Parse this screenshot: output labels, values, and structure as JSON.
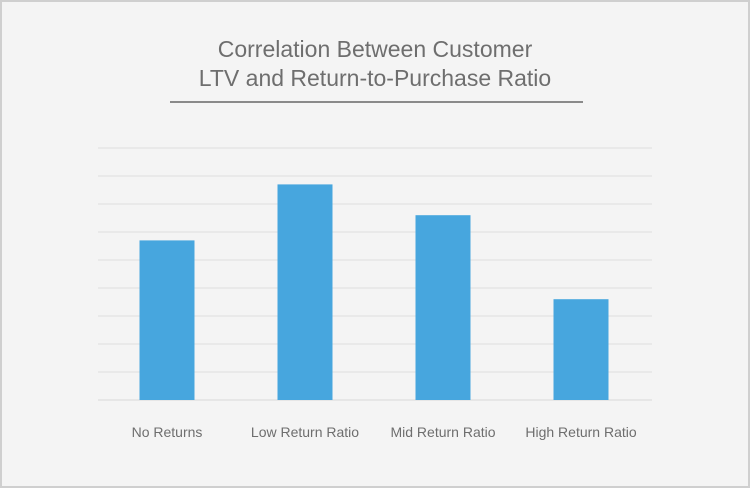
{
  "title_line1": "Correlation Between Customer",
  "title_line2": "LTV and Return-to-Purchase Ratio",
  "chart_data": {
    "type": "bar",
    "title": "Correlation Between Customer LTV and Return-to-Purchase Ratio",
    "categories": [
      "No Returns",
      "Low Return Ratio",
      "Mid Return Ratio",
      "High Return Ratio"
    ],
    "values": [
      5.7,
      7.7,
      6.6,
      3.6
    ],
    "ylim": [
      0,
      9
    ],
    "grid": true,
    "y_tick_labels_shown": false,
    "bar_color": "#47a6de",
    "grid_color": "#dedede",
    "background": "#f4f4f4"
  }
}
